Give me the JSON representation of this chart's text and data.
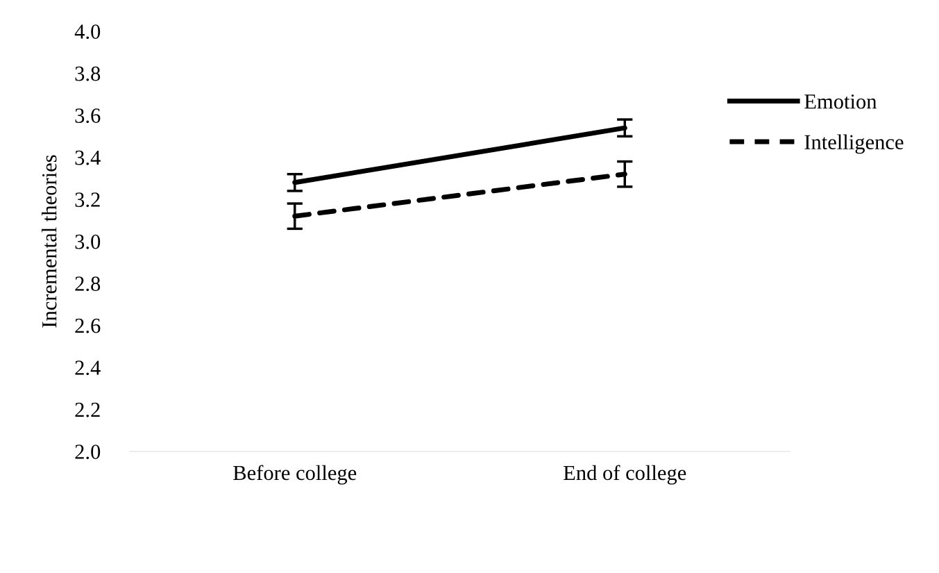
{
  "chart_data": {
    "type": "line",
    "ylabel": "Incremental theories",
    "categories": [
      "Before college",
      "End of college"
    ],
    "series": [
      {
        "name": "Emotion",
        "color": "#000000",
        "values": [
          3.28,
          3.54
        ],
        "errors": [
          0.04,
          0.04
        ],
        "line_style": "solid"
      },
      {
        "name": "Intelligence",
        "color": "#000000",
        "values": [
          3.12,
          3.32
        ],
        "errors": [
          0.06,
          0.06
        ],
        "line_style": "dashed"
      }
    ],
    "ylim": [
      2.0,
      4.0
    ],
    "yticks": [
      {
        "value": 2.0,
        "label": "2.0"
      },
      {
        "value": 2.2,
        "label": "2.2"
      },
      {
        "value": 2.4,
        "label": "2.4"
      },
      {
        "value": 2.6,
        "label": "2.6"
      },
      {
        "value": 2.8,
        "label": "2.8"
      },
      {
        "value": 3.0,
        "label": "3.0"
      },
      {
        "value": 3.2,
        "label": "3.2"
      },
      {
        "value": 3.4,
        "label": "3.4"
      },
      {
        "value": 3.6,
        "label": "3.6"
      },
      {
        "value": 3.8,
        "label": "3.8"
      },
      {
        "value": 4.0,
        "label": "4.0"
      }
    ],
    "grid": false,
    "legend": "right",
    "marker": "none"
  }
}
